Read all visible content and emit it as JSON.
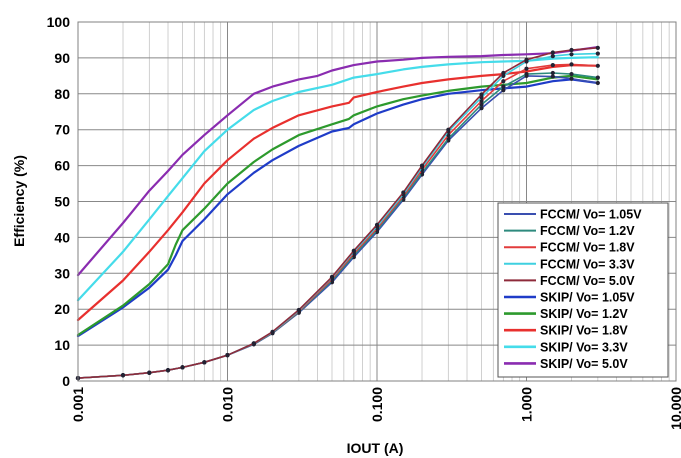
{
  "chart_data": {
    "type": "line",
    "ylabel": "Efficiency (%)",
    "xlabel": "IOUT (A)",
    "xscale": "log",
    "xlim": [
      0.001,
      10
    ],
    "ylim": [
      0,
      100
    ],
    "grid": true,
    "legend_position": "bottom-right",
    "x_tick_labels": [
      "0.001",
      "0.010",
      "0.100",
      "1.000",
      "10.000"
    ],
    "y_tick_labels": [
      "0",
      "10",
      "20",
      "30",
      "40",
      "50",
      "60",
      "70",
      "80",
      "90",
      "100"
    ],
    "series": [
      {
        "name": "FCCM/ Vo= 1.05V",
        "color": "#3a4fb0",
        "width": 1.6,
        "marker": "dot",
        "x": [
          0.001,
          0.002,
          0.003,
          0.004,
          0.005,
          0.007,
          0.01,
          0.015,
          0.02,
          0.03,
          0.05,
          0.07,
          0.1,
          0.15,
          0.2,
          0.3,
          0.5,
          0.7,
          1.0,
          1.5,
          2.0,
          3.0
        ],
        "y": [
          0.8,
          1.6,
          2.3,
          3.0,
          3.8,
          5.2,
          7.2,
          10.2,
          13.3,
          19.0,
          27.5,
          34.5,
          41.5,
          50.5,
          57.5,
          67.0,
          76.0,
          81.0,
          85.0,
          84.8,
          84.2,
          83.0
        ]
      },
      {
        "name": "FCCM/ Vo= 1.2V",
        "color": "#2e8a7e",
        "width": 1.6,
        "marker": "dot",
        "x": [
          0.001,
          0.002,
          0.003,
          0.004,
          0.005,
          0.007,
          0.01,
          0.015,
          0.02,
          0.03,
          0.05,
          0.07,
          0.1,
          0.15,
          0.2,
          0.3,
          0.5,
          0.7,
          1.0,
          1.5,
          2.0,
          3.0
        ],
        "y": [
          0.8,
          1.6,
          2.3,
          3.0,
          3.8,
          5.2,
          7.2,
          10.3,
          13.4,
          19.2,
          28.0,
          35.0,
          42.0,
          51.0,
          58.0,
          67.5,
          77.0,
          82.0,
          85.5,
          85.8,
          85.5,
          84.5
        ]
      },
      {
        "name": "FCCM/ Vo= 1.8V",
        "color": "#e23c3c",
        "width": 1.6,
        "marker": "dot",
        "x": [
          0.001,
          0.002,
          0.003,
          0.004,
          0.005,
          0.007,
          0.01,
          0.015,
          0.02,
          0.03,
          0.05,
          0.07,
          0.1,
          0.15,
          0.2,
          0.3,
          0.5,
          0.7,
          1.0,
          1.5,
          2.0,
          3.0
        ],
        "y": [
          0.8,
          1.6,
          2.3,
          3.0,
          3.8,
          5.2,
          7.2,
          10.4,
          13.5,
          19.4,
          28.4,
          35.5,
          42.5,
          51.5,
          58.8,
          68.5,
          78.0,
          83.5,
          87.0,
          88.0,
          88.2,
          87.8
        ]
      },
      {
        "name": "FCCM/ Vo= 3.3V",
        "color": "#3fd0e0",
        "width": 1.6,
        "marker": "dot",
        "x": [
          0.001,
          0.002,
          0.003,
          0.004,
          0.005,
          0.007,
          0.01,
          0.015,
          0.02,
          0.03,
          0.05,
          0.07,
          0.1,
          0.15,
          0.2,
          0.3,
          0.5,
          0.7,
          1.0,
          1.5,
          2.0,
          3.0
        ],
        "y": [
          0.8,
          1.6,
          2.3,
          3.0,
          3.8,
          5.2,
          7.2,
          10.5,
          13.6,
          19.6,
          28.8,
          36.0,
          43.0,
          52.0,
          59.5,
          69.5,
          79.0,
          85.0,
          89.0,
          90.5,
          91.0,
          91.2
        ]
      },
      {
        "name": "FCCM/ Vo= 5.0V",
        "color": "#8e2a3a",
        "width": 1.6,
        "marker": "dot",
        "x": [
          0.001,
          0.002,
          0.003,
          0.004,
          0.005,
          0.007,
          0.01,
          0.015,
          0.02,
          0.03,
          0.05,
          0.07,
          0.1,
          0.15,
          0.2,
          0.3,
          0.5,
          0.7,
          1.0,
          1.5,
          2.0,
          3.0
        ],
        "y": [
          0.8,
          1.6,
          2.3,
          3.0,
          3.8,
          5.2,
          7.2,
          10.5,
          13.7,
          19.8,
          29.0,
          36.3,
          43.5,
          52.5,
          60.0,
          70.0,
          79.8,
          85.8,
          89.5,
          91.5,
          92.2,
          92.8
        ]
      },
      {
        "name": "SKIP/ Vo= 1.05V",
        "color": "#1f3cc8",
        "width": 2.2,
        "marker": "none",
        "x": [
          0.001,
          0.002,
          0.003,
          0.004,
          0.0045,
          0.005,
          0.007,
          0.01,
          0.015,
          0.02,
          0.03,
          0.05,
          0.065,
          0.07,
          0.1,
          0.15,
          0.2,
          0.3,
          0.5,
          0.7,
          1.0,
          1.5,
          2.0,
          3.0
        ],
        "y": [
          12.5,
          20.5,
          26.0,
          31.0,
          35.0,
          39.0,
          45.0,
          52.0,
          58.0,
          61.5,
          65.5,
          69.5,
          70.5,
          71.5,
          74.5,
          77.0,
          78.5,
          80.0,
          81.0,
          81.5,
          82.0,
          83.5,
          84.0,
          83.0
        ]
      },
      {
        "name": "SKIP/ Vo= 1.2V",
        "color": "#2d9a2d",
        "width": 2.2,
        "marker": "none",
        "x": [
          0.001,
          0.002,
          0.003,
          0.004,
          0.0045,
          0.005,
          0.007,
          0.01,
          0.015,
          0.02,
          0.03,
          0.05,
          0.065,
          0.07,
          0.1,
          0.15,
          0.2,
          0.3,
          0.5,
          0.7,
          1.0,
          1.5,
          2.0,
          3.0
        ],
        "y": [
          12.8,
          21.0,
          27.0,
          32.5,
          38.0,
          42.0,
          48.0,
          55.0,
          61.0,
          64.5,
          68.5,
          71.5,
          73.0,
          74.0,
          76.5,
          78.5,
          79.5,
          80.8,
          82.0,
          82.5,
          83.0,
          84.5,
          85.0,
          84.0
        ]
      },
      {
        "name": "SKIP/ Vo= 1.8V",
        "color": "#e8302e",
        "width": 2.2,
        "marker": "none",
        "x": [
          0.001,
          0.002,
          0.003,
          0.004,
          0.005,
          0.007,
          0.01,
          0.015,
          0.02,
          0.03,
          0.05,
          0.065,
          0.07,
          0.1,
          0.15,
          0.2,
          0.3,
          0.5,
          0.7,
          1.0,
          1.5,
          2.0,
          3.0
        ],
        "y": [
          17.0,
          28.0,
          36.0,
          42.0,
          47.0,
          55.0,
          61.5,
          67.5,
          70.5,
          74.0,
          76.5,
          77.5,
          79.0,
          80.5,
          82.0,
          83.0,
          84.0,
          85.0,
          85.5,
          86.2,
          87.5,
          88.0,
          87.8
        ]
      },
      {
        "name": "SKIP/ Vo= 3.3V",
        "color": "#45dcea",
        "width": 2.2,
        "marker": "none",
        "x": [
          0.001,
          0.002,
          0.003,
          0.004,
          0.005,
          0.007,
          0.01,
          0.015,
          0.02,
          0.03,
          0.05,
          0.07,
          0.1,
          0.15,
          0.2,
          0.3,
          0.5,
          0.7,
          1.0,
          1.5,
          2.0,
          3.0
        ],
        "y": [
          22.5,
          36.0,
          45.0,
          51.5,
          56.5,
          64.0,
          70.0,
          75.5,
          78.0,
          80.5,
          82.5,
          84.5,
          85.5,
          86.8,
          87.5,
          88.2,
          88.8,
          89.0,
          89.2,
          89.8,
          90.0,
          90.2
        ]
      },
      {
        "name": "SKIP/ Vo= 5.0V",
        "color": "#8a2cb0",
        "width": 2.2,
        "marker": "none",
        "x": [
          0.001,
          0.002,
          0.003,
          0.004,
          0.005,
          0.007,
          0.01,
          0.015,
          0.02,
          0.03,
          0.04,
          0.05,
          0.07,
          0.1,
          0.15,
          0.2,
          0.3,
          0.5,
          0.7,
          1.0,
          1.5,
          2.0,
          3.0
        ],
        "y": [
          29.5,
          44.0,
          53.0,
          58.5,
          63.0,
          68.5,
          74.0,
          80.0,
          82.0,
          84.0,
          85.0,
          86.5,
          88.0,
          89.0,
          89.5,
          90.0,
          90.3,
          90.5,
          90.8,
          91.0,
          91.3,
          92.0,
          93.0
        ]
      }
    ]
  }
}
